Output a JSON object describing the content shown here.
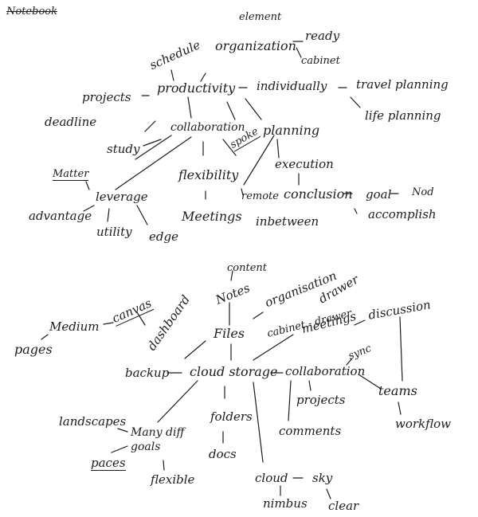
{
  "corner": {
    "scribble": "Notebook"
  },
  "map1": {
    "schedule": "schedule",
    "element": "element",
    "organization": "organization",
    "ready": "ready",
    "cabinet": "cabinet",
    "projects": "projects",
    "productivity": "productivity",
    "individually": "individually",
    "travel_planning": "travel planning",
    "deadline": "deadline",
    "life_planning": "life planning",
    "collaboration": "collaboration",
    "planning": "planning",
    "study": "study",
    "spoke": "spoke",
    "execution": "execution",
    "matter": "Matter",
    "flexibility": "flexibility",
    "leverage": "leverage",
    "remote": "remote",
    "conclusion": "conclusion",
    "goal": "goal",
    "nod": "Nod",
    "advantage": "advantage",
    "meetings": "Meetings",
    "inbetween": "inbetween",
    "accomplish": "accomplish",
    "utility": "utility",
    "edge": "edge"
  },
  "map2": {
    "content": "content",
    "notes": "Notes",
    "organisation": "organisation",
    "drawer": "drawer",
    "medium": "Medium",
    "canvas": "canvas",
    "dashboard": "dashboard",
    "files": "Files",
    "cabinet_drawer": "cabinet - drawer",
    "meetings": "meetings",
    "discussion": "discussion",
    "pages": "pages",
    "sync": "sync",
    "backup": "backup",
    "cloud_storage": "cloud storage",
    "collaboration": "collaboration",
    "teams": "teams",
    "projects": "projects",
    "landscapes": "landscapes",
    "many_diff_goals": "Many diff goals",
    "folders": "folders",
    "comments": "comments",
    "workflow": "workflow",
    "docs": "docs",
    "paces": "paces",
    "flexible": "flexible",
    "cloud": "cloud",
    "sky": "sky",
    "nimbus": "nimbus",
    "clear": "clear"
  }
}
